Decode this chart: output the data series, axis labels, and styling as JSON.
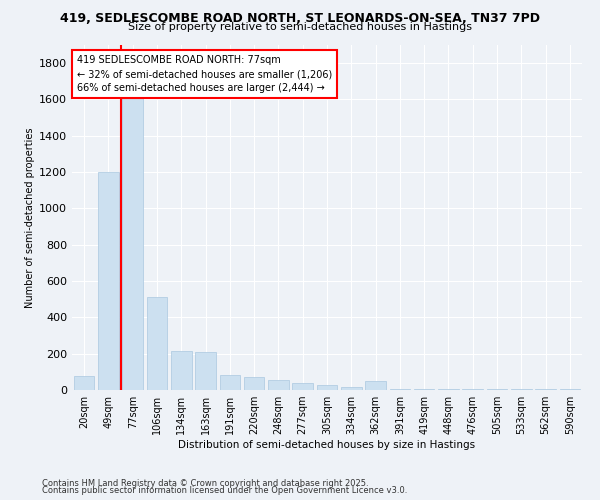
{
  "title_line1": "419, SEDLESCOMBE ROAD NORTH, ST LEONARDS-ON-SEA, TN37 7PD",
  "title_line2": "Size of property relative to semi-detached houses in Hastings",
  "xlabel": "Distribution of semi-detached houses by size in Hastings",
  "ylabel": "Number of semi-detached properties",
  "categories": [
    "20sqm",
    "49sqm",
    "77sqm",
    "106sqm",
    "134sqm",
    "163sqm",
    "191sqm",
    "220sqm",
    "248sqm",
    "277sqm",
    "305sqm",
    "334sqm",
    "362sqm",
    "391sqm",
    "419sqm",
    "448sqm",
    "476sqm",
    "505sqm",
    "533sqm",
    "562sqm",
    "590sqm"
  ],
  "values": [
    75,
    1200,
    1680,
    510,
    215,
    210,
    80,
    70,
    55,
    40,
    25,
    15,
    50,
    8,
    8,
    8,
    8,
    8,
    8,
    8,
    8
  ],
  "bar_color": "#cce0f0",
  "bar_edge_color": "#aac8e0",
  "vline_color": "red",
  "vline_x": 2.5,
  "annotation_text": "419 SEDLESCOMBE ROAD NORTH: 77sqm\n← 32% of semi-detached houses are smaller (1,206)\n66% of semi-detached houses are larger (2,444) →",
  "annotation_box_color": "white",
  "annotation_box_edge": "red",
  "ylim": [
    0,
    1900
  ],
  "yticks": [
    0,
    200,
    400,
    600,
    800,
    1000,
    1200,
    1400,
    1600,
    1800
  ],
  "footer_line1": "Contains HM Land Registry data © Crown copyright and database right 2025.",
  "footer_line2": "Contains public sector information licensed under the Open Government Licence v3.0.",
  "bg_color": "#eef2f7",
  "plot_bg_color": "#eef2f7"
}
